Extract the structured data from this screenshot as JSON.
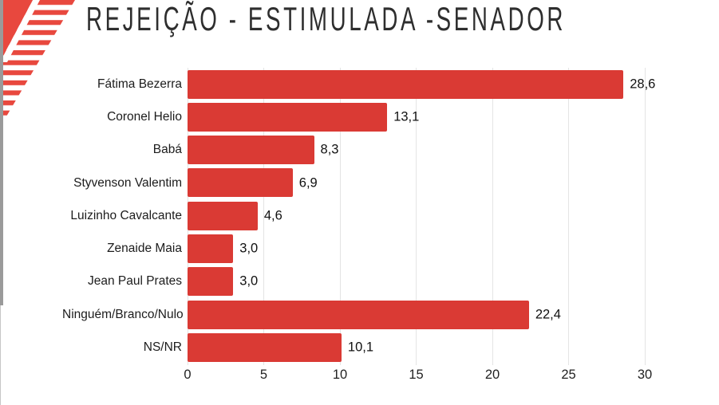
{
  "title": "REJEIÇÃO - ESTIMULADA -SENADOR",
  "colors": {
    "bg": "#FFFFFF",
    "bar": "#DA3A34",
    "logo": "#E8483E",
    "grid": "#E4E4E4",
    "strip": "#9A9A9A",
    "title_color": "#2E2E2E",
    "text": "#1C1C1C"
  },
  "chart_data": {
    "type": "bar",
    "orientation": "horizontal",
    "title": "REJEIÇÃO - ESTIMULADA -SENADOR",
    "categories": [
      "Fátima Bezerra",
      "Coronel Helio",
      "Babá",
      "Styvenson Valentim",
      "Luizinho Cavalcante",
      "Zenaide Maia",
      "Jean Paul Prates",
      "Ninguém/Branco/Nulo",
      "NS/NR"
    ],
    "values": [
      28.6,
      13.1,
      8.3,
      6.9,
      4.6,
      3.0,
      3.0,
      22.4,
      10.1
    ],
    "value_labels": [
      "28,6",
      "13,1",
      "8,3",
      "6,9",
      "4,6",
      "3,0",
      "3,0",
      "22,4",
      "10,1"
    ],
    "x_ticks": [
      0,
      5,
      10,
      15,
      20,
      25,
      30
    ],
    "x_tick_labels": [
      "0",
      "5",
      "10",
      "15",
      "20",
      "25",
      "30"
    ],
    "xlim": [
      0,
      30
    ],
    "xlabel": "",
    "ylabel": "",
    "grid": "vertical",
    "legend": "none",
    "bar_color": "#DA3A34"
  }
}
